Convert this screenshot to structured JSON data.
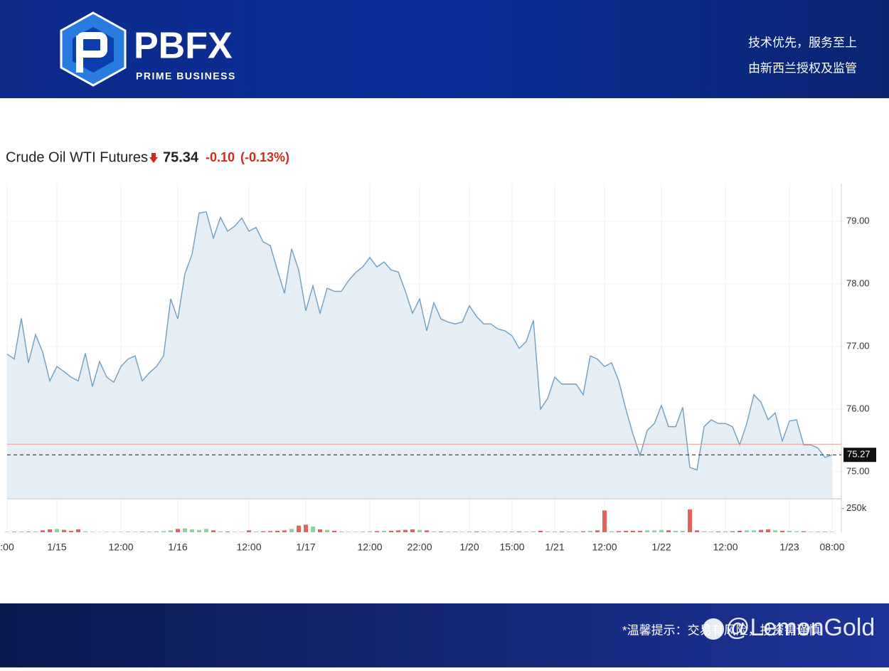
{
  "header": {
    "brand": "PBFX",
    "tagline": "PRIME BUSINESS",
    "slogan_1": "技术优先，服务至上",
    "slogan_2": "由新西兰授权及监管"
  },
  "footer": {
    "notice": "*温馨提示：交易有风险，投资需谨慎",
    "watermark": "@LemonGold"
  },
  "chart_data": {
    "type": "line",
    "title": "Crude Oil WTI Futures",
    "last_price": 75.34,
    "change": {
      "value": -0.1,
      "label": "-0.10"
    },
    "change_percent": {
      "value": -0.13,
      "label": "(-0.13%)"
    },
    "current_value": 75.27,
    "previous_close": 75.44,
    "categories": [
      ":00",
      null,
      null,
      null,
      null,
      null,
      null,
      "1/15",
      null,
      null,
      null,
      null,
      null,
      null,
      null,
      null,
      "12:00",
      null,
      null,
      null,
      null,
      null,
      null,
      null,
      "1/16",
      null,
      null,
      null,
      null,
      null,
      null,
      null,
      null,
      null,
      "12:00",
      null,
      null,
      null,
      null,
      null,
      null,
      null,
      "1/17",
      null,
      null,
      null,
      null,
      null,
      null,
      null,
      null,
      "12:00",
      null,
      null,
      null,
      null,
      null,
      null,
      "22:00",
      null,
      null,
      null,
      null,
      null,
      null,
      "1/20",
      null,
      null,
      null,
      null,
      null,
      "15:00",
      null,
      null,
      null,
      null,
      null,
      "1/21",
      null,
      null,
      null,
      null,
      null,
      null,
      "12:00",
      null,
      null,
      null,
      null,
      null,
      null,
      null,
      "1/22",
      null,
      null,
      null,
      null,
      null,
      null,
      null,
      null,
      "12:00",
      null,
      null,
      null,
      null,
      null,
      null,
      null,
      null,
      "1/23",
      null,
      null,
      null,
      null,
      null,
      "08:00"
    ],
    "series": [
      {
        "name": "Price",
        "color": "#6f9fc0",
        "values": [
          76.88,
          76.8,
          77.45,
          76.74,
          77.19,
          76.91,
          76.45,
          76.68,
          76.6,
          76.51,
          76.45,
          76.89,
          76.36,
          76.76,
          76.51,
          76.43,
          76.68,
          76.8,
          76.85,
          76.45,
          76.58,
          76.68,
          76.85,
          77.76,
          77.44,
          78.16,
          78.47,
          79.13,
          79.15,
          78.73,
          79.06,
          78.84,
          78.92,
          79.05,
          78.84,
          78.9,
          78.67,
          78.61,
          78.22,
          77.85,
          78.56,
          78.22,
          77.57,
          77.97,
          77.53,
          77.93,
          77.88,
          77.88,
          78.05,
          78.18,
          78.27,
          78.42,
          78.27,
          78.35,
          78.22,
          78.19,
          77.88,
          77.53,
          77.76,
          77.25,
          77.7,
          77.44,
          77.39,
          77.36,
          77.39,
          77.65,
          77.48,
          77.36,
          77.36,
          77.28,
          77.25,
          77.17,
          76.97,
          77.08,
          77.42,
          76.0,
          76.17,
          76.51,
          76.4,
          76.4,
          76.4,
          76.23,
          76.85,
          76.8,
          76.68,
          76.74,
          76.45,
          76.0,
          75.6,
          75.26,
          75.66,
          75.77,
          76.06,
          75.72,
          75.72,
          76.03,
          75.07,
          75.03,
          75.72,
          75.83,
          75.77,
          75.77,
          75.72,
          75.43,
          75.77,
          76.23,
          76.11,
          75.83,
          75.94,
          75.49,
          75.81,
          75.83,
          75.43,
          75.43,
          75.38,
          75.23,
          75.27
        ]
      }
    ],
    "ylim": [
      74.58,
      79.6
    ],
    "yticks": [
      {
        "value": 75,
        "label": "75.00"
      },
      {
        "value": 76,
        "label": "76.00"
      },
      {
        "value": 77,
        "label": "77.00"
      },
      {
        "value": 78,
        "label": "78.00"
      },
      {
        "value": 79,
        "label": "79.00"
      }
    ],
    "volume": {
      "values": [
        5000,
        6000,
        8000,
        6000,
        8000,
        20000,
        30000,
        35000,
        25000,
        15000,
        30000,
        10000,
        3000,
        3000,
        3000,
        3000,
        5000,
        8000,
        6000,
        5000,
        8000,
        10000,
        12000,
        20000,
        35000,
        40000,
        30000,
        25000,
        35000,
        20000,
        10000,
        8000,
        5000,
        5000,
        20000,
        8000,
        10000,
        12000,
        15000,
        20000,
        35000,
        70000,
        80000,
        60000,
        30000,
        25000,
        15000,
        8000,
        5000,
        5000,
        8000,
        10000,
        12000,
        15000,
        15000,
        20000,
        25000,
        30000,
        25000,
        20000,
        10000,
        8000,
        5000,
        5000,
        5000,
        8000,
        8000,
        5000,
        5000,
        5000,
        5000,
        5000,
        8000,
        8000,
        10000,
        15000,
        10000,
        8000,
        8000,
        8000,
        8000,
        10000,
        15000,
        20000,
        230000,
        10000,
        12000,
        15000,
        15000,
        15000,
        20000,
        20000,
        25000,
        20000,
        15000,
        15000,
        240000,
        20000,
        10000,
        8000,
        8000,
        10000,
        10000,
        15000,
        20000,
        20000,
        25000,
        30000,
        20000,
        15000,
        15000,
        10000,
        10000,
        5000,
        5000,
        5000,
        5000
      ],
      "up_color": "#8fd0a4",
      "down_color": "#e0635f",
      "ylim": [
        0,
        300000
      ],
      "yticks": [
        {
          "value": 250000,
          "label": "250k"
        }
      ]
    },
    "grid": true
  }
}
